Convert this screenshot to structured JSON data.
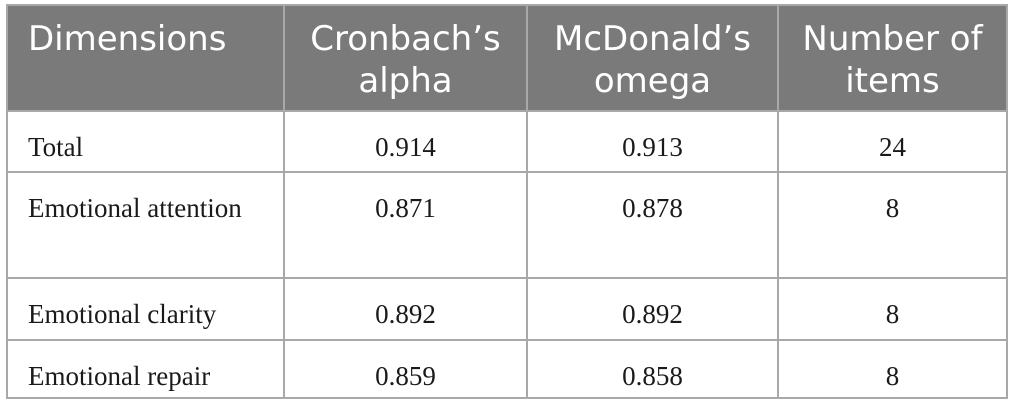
{
  "table": {
    "headers": [
      "Dimensions",
      "Cronbach’s alpha",
      "McDonald’s omega",
      "Number of items"
    ],
    "rows": [
      {
        "dimension": "Total",
        "alpha": "0.914",
        "omega": "0.913",
        "items": "24"
      },
      {
        "dimension": "Emotional attention",
        "alpha": "0.871",
        "omega": "0.878",
        "items": "8"
      },
      {
        "dimension": "Emotional clarity",
        "alpha": "0.892",
        "omega": "0.892",
        "items": "8"
      },
      {
        "dimension": "Emotional repair",
        "alpha": "0.859",
        "omega": "0.858",
        "items": "8"
      }
    ]
  },
  "colors": {
    "header_background": "#7a7a7a",
    "header_text": "#ffffff",
    "border": "#a8a8a8",
    "body_text": "#1a1a1a"
  }
}
